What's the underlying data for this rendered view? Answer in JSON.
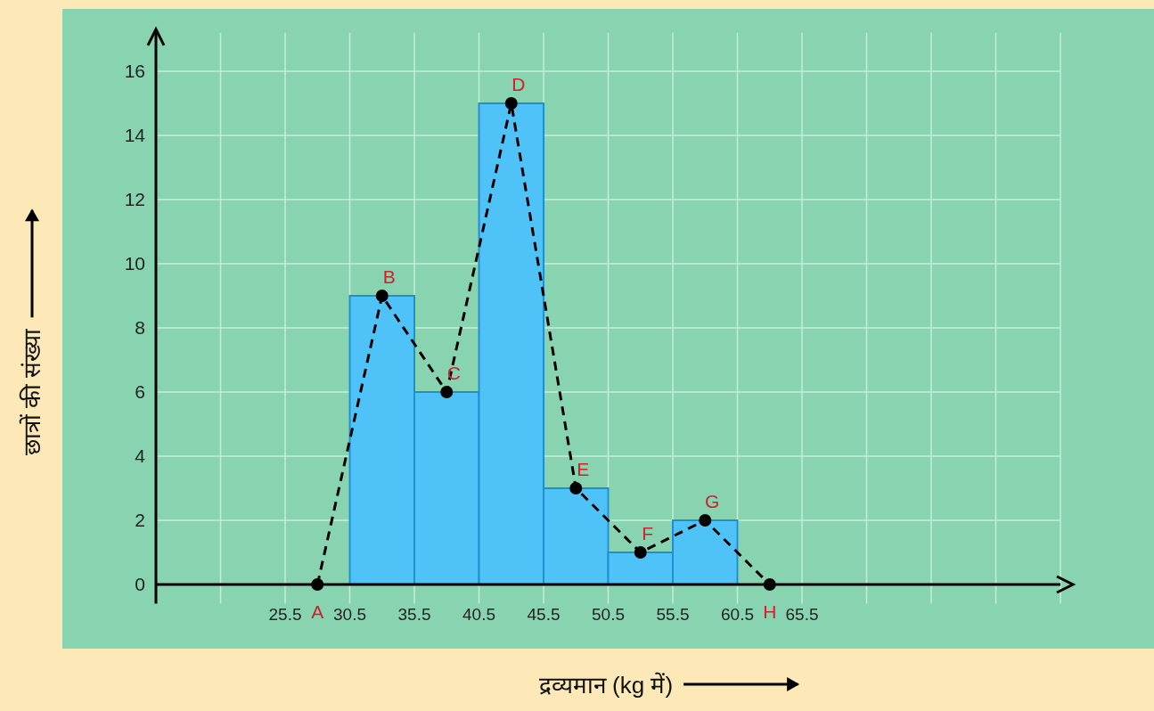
{
  "chart_data": {
    "type": "histogram",
    "xlabel": "द्रव्यमान (kg में)",
    "ylabel": "छात्रों की संख्या",
    "bins": [
      30.5,
      35.5,
      40.5,
      45.5,
      50.5,
      55.5,
      60.5
    ],
    "values": [
      9,
      6,
      15,
      3,
      1,
      2
    ],
    "color": "#4fc3f7",
    "series": [
      {
        "type": "line",
        "x": [
          28,
          33,
          38,
          43,
          48,
          53,
          58,
          63
        ],
        "values": [
          0,
          9,
          6,
          15,
          3,
          1,
          2,
          0
        ],
        "color": "#000000",
        "line_style": "dashed",
        "marker": "circle"
      }
    ],
    "xlim": [
      15.5,
      85.5
    ],
    "ylim": [
      -0.6,
      17.2
    ],
    "xticks": [
      {
        "value": 15.5,
        "label": null
      },
      {
        "value": 20.5,
        "label": null
      },
      25.5,
      30.5,
      35.5,
      40.5,
      45.5,
      50.5,
      55.5,
      60.5,
      65.5,
      {
        "value": 70.5,
        "label": null
      },
      {
        "value": 75.5,
        "label": null
      },
      {
        "value": 80.5,
        "label": null
      },
      {
        "value": 85.5,
        "label": null
      }
    ],
    "yticks": [
      0,
      2,
      4,
      6,
      8,
      10,
      12,
      14,
      16
    ],
    "grid": true,
    "annotations": [
      {
        "text": "A",
        "x": 28,
        "y": 0
      },
      {
        "text": "B",
        "x": 33,
        "y": 9
      },
      {
        "text": "C",
        "x": 38,
        "y": 6
      },
      {
        "text": "D",
        "x": 43,
        "y": 15
      },
      {
        "text": "E",
        "x": 48,
        "y": 3
      },
      {
        "text": "F",
        "x": 53,
        "y": 1
      },
      {
        "text": "G",
        "x": 58,
        "y": 2
      },
      {
        "text": "H",
        "x": 63,
        "y": 0
      }
    ]
  }
}
